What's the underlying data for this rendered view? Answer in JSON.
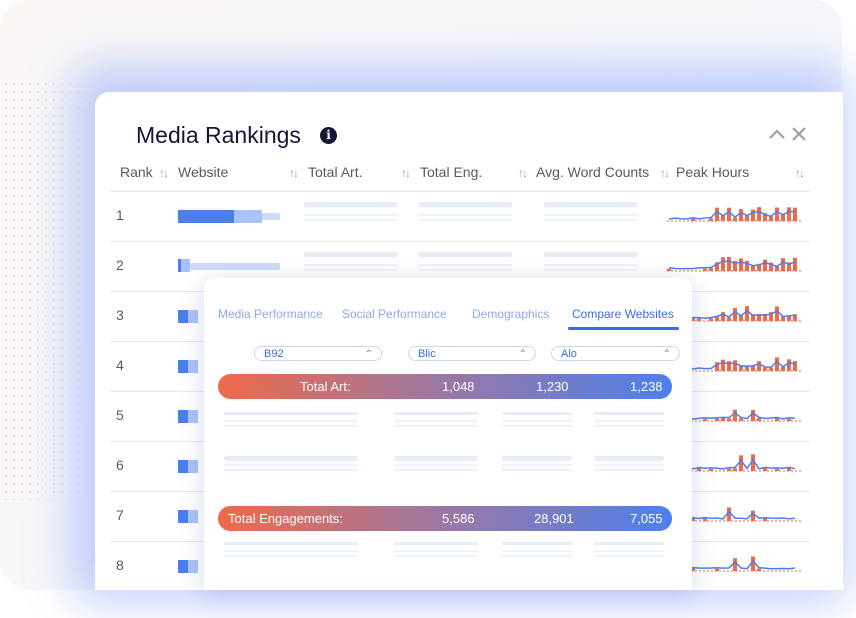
{
  "panel": {
    "title": "Media Rankings",
    "columns": [
      "Rank",
      "Website",
      "Total Art.",
      "Total Eng.",
      "Avg. Word Counts",
      "Peak Hours"
    ],
    "rows": [
      {
        "rank": "1",
        "website_fill": 0.55
      },
      {
        "rank": "2",
        "website_fill": 0.1
      },
      {
        "rank": "3",
        "website_fill": 0.1
      },
      {
        "rank": "4",
        "website_fill": 0.1
      },
      {
        "rank": "5",
        "website_fill": 0.1
      },
      {
        "rank": "6",
        "website_fill": 0.1
      },
      {
        "rank": "7",
        "website_fill": 0.1
      },
      {
        "rank": "8",
        "website_fill": 0.1
      }
    ]
  },
  "compare": {
    "tabs": [
      "Media Performance",
      "Social Performance",
      "Demographics",
      "Compare Websites"
    ],
    "active_tab": "Compare Websites",
    "selectors": [
      "B92",
      "Blic",
      "Alo"
    ],
    "total_art": {
      "label": "Total Art:",
      "values": [
        "1,048",
        "1,230",
        "1,238"
      ]
    },
    "total_eng": {
      "label": "Total Engagements:",
      "values": [
        "5,586",
        "28,901",
        "7,055"
      ]
    }
  },
  "colors": {
    "accent": "#3d6be0",
    "bar": "#4a7fec",
    "orange": "#ef6a49"
  },
  "icons": [
    "info-icon",
    "chevron-up-icon",
    "close-icon",
    "sort-icon",
    "chevron-down-icon"
  ]
}
